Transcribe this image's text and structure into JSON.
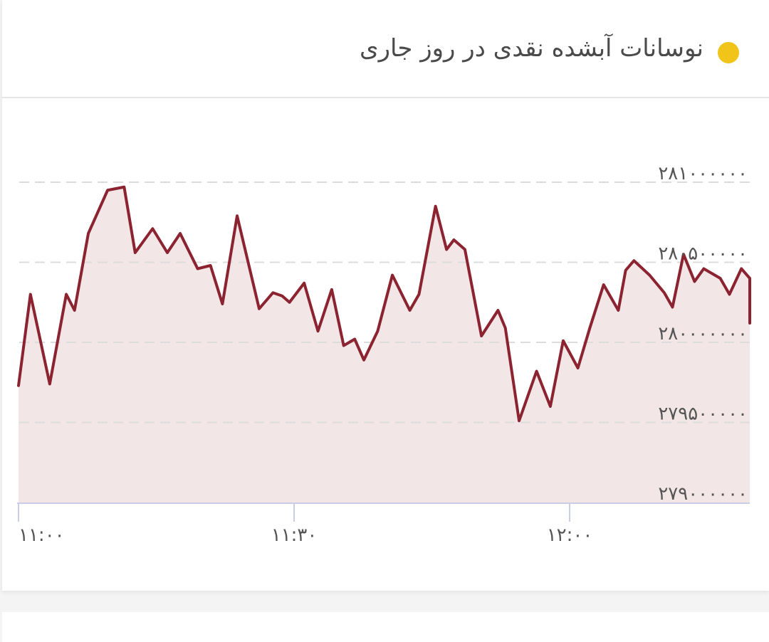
{
  "header": {
    "title": "نوسانات آبشده نقدی در روز جاری",
    "dot_color": "#f0c419"
  },
  "chart_data": {
    "type": "area",
    "title": "نوسانات آبشده نقدی در روز جاری",
    "xlabel": "",
    "ylabel": "",
    "ylim": [
      279000000,
      281000000
    ],
    "y_ticks": [
      279000000,
      279500000,
      280000000,
      280500000,
      281000000
    ],
    "y_tick_labels": [
      "۲۷۹۰۰۰۰۰۰",
      "۲۷۹۵۰۰۰۰۰",
      "۲۸۰۰۰۰۰۰۰",
      "۲۸۰۵۰۰۰۰۰",
      "۲۸۱۰۰۰۰۰۰"
    ],
    "x_ticks": [
      "11:00",
      "11:30",
      "12:00"
    ],
    "x_tick_labels": [
      "۱۱:۰۰",
      "۱۱:۳۰",
      "۱۲:۰۰"
    ],
    "grid": true,
    "line_color": "#8b2330",
    "fill_color": "#f3e6e7",
    "x_minutes": [
      0,
      1.3,
      3.4,
      5.2,
      6.1,
      7.6,
      9.7,
      11.5,
      12.7,
      14.6,
      16.2,
      17.6,
      19.5,
      20.9,
      22.2,
      23.8,
      26.2,
      27.7,
      28.7,
      29.5,
      31.1,
      32.6,
      34.1,
      35.4,
      36.6,
      37.6,
      39.1,
      40.7,
      42.6,
      43.6,
      45.4,
      46.6,
      47.4,
      48.6,
      50.4,
      52.2,
      53.0,
      54.5,
      56.4,
      57.9,
      59.3,
      60.9,
      62.2,
      63.7,
      65.3,
      66.1,
      67.0,
      68.7,
      70.3,
      71.2,
      72.4,
      73.6,
      74.6,
      76.4,
      77.4,
      78.7,
      79.9,
      80.7
    ],
    "y_values": [
      279730000,
      280300000,
      279740000,
      280300000,
      280200000,
      280680000,
      280950000,
      280970000,
      280560000,
      280710000,
      280560000,
      280680000,
      280460000,
      280480000,
      280240000,
      280790000,
      280210000,
      280310000,
      280290000,
      280250000,
      280370000,
      280070000,
      280330000,
      279980000,
      280020000,
      279890000,
      280070000,
      280420000,
      280200000,
      280300000,
      280850000,
      280580000,
      280640000,
      280580000,
      280040000,
      280200000,
      280090000,
      279510000,
      279820000,
      279600000,
      280010000,
      279840000,
      280090000,
      280360000,
      280200000,
      280450000,
      280510000,
      280420000,
      280310000,
      280220000,
      280550000,
      280380000,
      280460000,
      280400000,
      280300000,
      280460000,
      280400000,
      280120000
    ]
  }
}
